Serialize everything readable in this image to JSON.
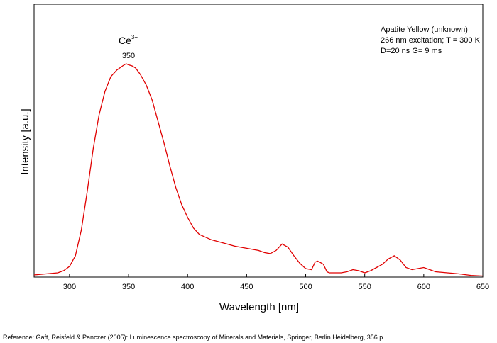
{
  "chart_data": {
    "type": "line",
    "xlabel": "Wavelength [nm]",
    "ylabel": "Intensity [a.u.]",
    "xlim": [
      270,
      650
    ],
    "ylim": [
      0,
      1
    ],
    "x_ticks": [
      300,
      350,
      400,
      450,
      500,
      550,
      600,
      650
    ],
    "grid": false,
    "color": "#e00000",
    "legend": {
      "position": "top-right",
      "lines": [
        "Apatite Yellow (unknown)",
        "266 nm excitation; T = 300 K",
        "D=20 ns G= 9 ms"
      ]
    },
    "annotations": {
      "ion_base": "Ce",
      "ion_superscript": "3+",
      "peak_label": "350"
    },
    "series": [
      {
        "x": [
          270,
          280,
          290,
          295,
          300,
          305,
          310,
          315,
          320,
          325,
          330,
          335,
          340,
          345,
          348,
          350,
          353,
          356,
          360,
          365,
          370,
          375,
          380,
          385,
          390,
          395,
          400,
          405,
          410,
          420,
          430,
          440,
          450,
          460,
          465,
          470,
          475,
          480,
          485,
          490,
          495,
          500,
          505,
          508,
          510,
          512,
          515,
          518,
          520,
          525,
          530,
          535,
          540,
          545,
          550,
          555,
          560,
          565,
          570,
          575,
          580,
          585,
          590,
          595,
          600,
          605,
          610,
          620,
          630,
          640,
          650
        ],
        "y": [
          0.01,
          0.015,
          0.02,
          0.03,
          0.05,
          0.1,
          0.22,
          0.4,
          0.6,
          0.76,
          0.87,
          0.94,
          0.97,
          0.99,
          1.0,
          0.995,
          0.99,
          0.98,
          0.95,
          0.9,
          0.83,
          0.73,
          0.63,
          0.52,
          0.42,
          0.34,
          0.28,
          0.23,
          0.2,
          0.175,
          0.16,
          0.145,
          0.135,
          0.125,
          0.115,
          0.11,
          0.125,
          0.155,
          0.14,
          0.1,
          0.065,
          0.04,
          0.035,
          0.07,
          0.075,
          0.07,
          0.06,
          0.025,
          0.02,
          0.02,
          0.02,
          0.025,
          0.035,
          0.03,
          0.02,
          0.03,
          0.045,
          0.06,
          0.085,
          0.1,
          0.08,
          0.045,
          0.035,
          0.04,
          0.045,
          0.035,
          0.025,
          0.02,
          0.015,
          0.008,
          0.005
        ]
      }
    ]
  },
  "reference": "Reference: Gaft, Reisfeld & Panczer (2005): Luminescence spectroscopy of Minerals and Materials, Springer, Berlin Heidelberg, 356 p."
}
